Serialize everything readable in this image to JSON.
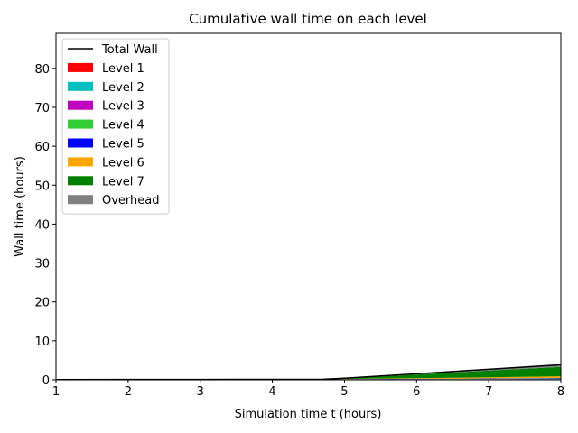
{
  "chart_data": {
    "type": "area",
    "title": "Cumulative wall time on each level",
    "xlabel": "Simulation time t (hours)",
    "ylabel": "Wall time (hours)",
    "xlim": [
      1,
      8
    ],
    "ylim": [
      0,
      89
    ],
    "xticks": [
      1,
      2,
      3,
      4,
      5,
      6,
      7,
      8
    ],
    "yticks": [
      0,
      10,
      20,
      30,
      40,
      50,
      60,
      70,
      80
    ],
    "grid": false,
    "legend_position": "top-left",
    "x": [
      1,
      2,
      3,
      4,
      4.7,
      5,
      6,
      7,
      8
    ],
    "series": [
      {
        "name": "Level 1",
        "color": "#ff0000",
        "values": [
          0.02,
          0.03,
          0.03,
          0.04,
          0.04,
          0.05,
          0.07,
          0.09,
          0.12
        ]
      },
      {
        "name": "Level 2",
        "color": "#00bfbf",
        "values": [
          0.01,
          0.02,
          0.02,
          0.02,
          0.03,
          0.03,
          0.05,
          0.06,
          0.08
        ]
      },
      {
        "name": "Level 3",
        "color": "#bf00bf",
        "values": [
          0.01,
          0.01,
          0.02,
          0.02,
          0.02,
          0.03,
          0.04,
          0.05,
          0.07
        ]
      },
      {
        "name": "Level 4",
        "color": "#32cd32",
        "values": [
          0.01,
          0.01,
          0.01,
          0.02,
          0.02,
          0.03,
          0.04,
          0.06,
          0.08
        ]
      },
      {
        "name": "Level 5",
        "color": "#0000ff",
        "values": [
          0.0,
          0.01,
          0.01,
          0.01,
          0.02,
          0.03,
          0.05,
          0.08,
          0.1
        ]
      },
      {
        "name": "Level 6",
        "color": "#ffa500",
        "values": [
          0.0,
          0.0,
          0.01,
          0.01,
          0.01,
          0.05,
          0.15,
          0.3,
          0.45
        ]
      },
      {
        "name": "Level 7",
        "color": "#008000",
        "values": [
          0.0,
          0.0,
          0.0,
          0.0,
          0.0,
          0.12,
          0.95,
          1.7,
          2.4
        ]
      },
      {
        "name": "Overhead",
        "color": "#808080",
        "values": [
          0.0,
          0.0,
          0.0,
          0.0,
          0.0,
          0.06,
          0.2,
          0.36,
          0.55
        ]
      }
    ],
    "total": {
      "name": "Total Wall",
      "color": "#000000",
      "values": [
        0.05,
        0.08,
        0.1,
        0.12,
        0.14,
        0.4,
        1.55,
        2.7,
        3.85
      ]
    }
  }
}
